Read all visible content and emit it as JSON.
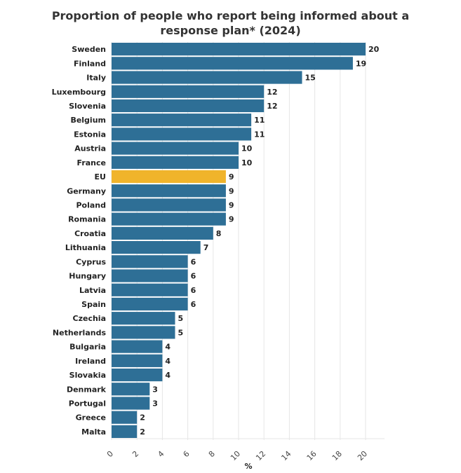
{
  "chart_data": {
    "type": "bar",
    "orientation": "horizontal",
    "title_lines": [
      "Proportion of people who report being informed about a",
      "response plan* (2024)"
    ],
    "xlabel": "%",
    "xlim": [
      0,
      20
    ],
    "xticks": [
      0,
      2,
      4,
      6,
      8,
      10,
      12,
      14,
      16,
      18,
      20
    ],
    "grid": true,
    "categories": [
      "Sweden",
      "Finland",
      "Italy",
      "Luxembourg",
      "Slovenia",
      "Belgium",
      "Estonia",
      "Austria",
      "France",
      "EU",
      "Germany",
      "Poland",
      "Romania",
      "Croatia",
      "Lithuania",
      "Cyprus",
      "Hungary",
      "Latvia",
      "Spain",
      "Czechia",
      "Netherlands",
      "Bulgaria",
      "Ireland",
      "Slovakia",
      "Denmark",
      "Portugal",
      "Greece",
      "Malta"
    ],
    "values": [
      20,
      19,
      15,
      12,
      12,
      11,
      11,
      10,
      10,
      9,
      9,
      9,
      9,
      8,
      7,
      6,
      6,
      6,
      6,
      5,
      5,
      4,
      4,
      4,
      3,
      3,
      2,
      2
    ],
    "highlight": "EU",
    "colors": {
      "bar": "#2e6f96",
      "highlight": "#f0b42b",
      "grid": "#e6e6e6"
    }
  }
}
